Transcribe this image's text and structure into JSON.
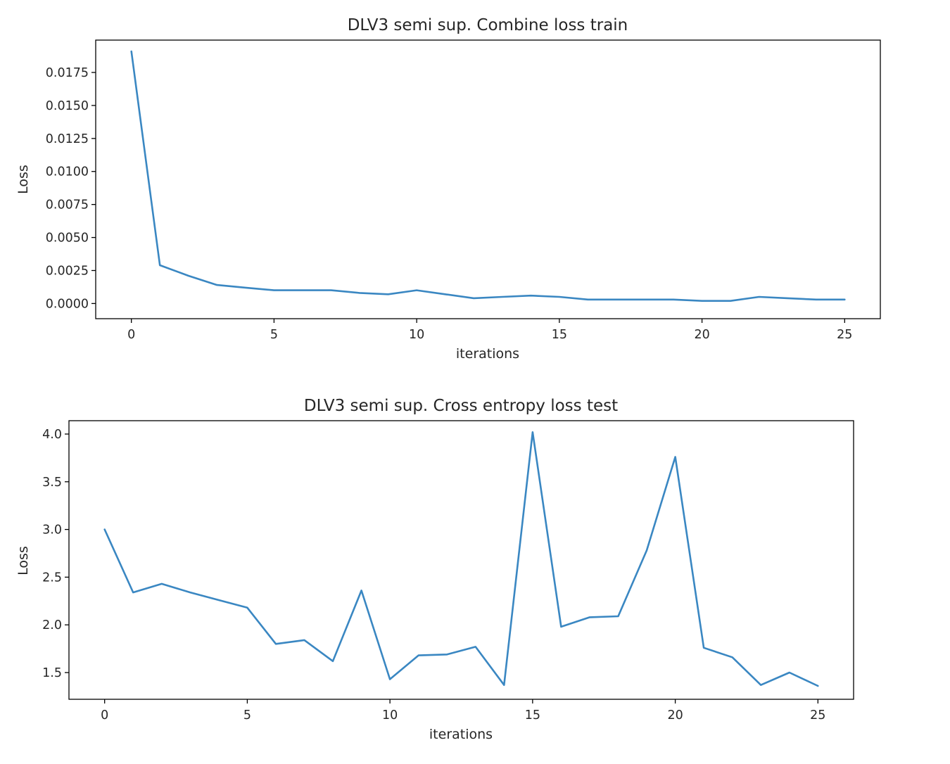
{
  "chart_data": [
    {
      "type": "line",
      "title": "DLV3 semi sup. Combine loss train",
      "xlabel": "iterations",
      "ylabel": "Loss",
      "xlim": [
        -1.25,
        26.25
      ],
      "ylim": [
        -0.00115,
        0.01995
      ],
      "xticks": [
        0,
        5,
        10,
        15,
        20,
        25
      ],
      "xtick_labels": [
        "0",
        "5",
        "10",
        "15",
        "20",
        "25"
      ],
      "yticks": [
        0,
        0.0025,
        0.005,
        0.0075,
        0.01,
        0.0125,
        0.015,
        0.0175
      ],
      "ytick_labels": [
        "0.0000",
        "0.0025",
        "0.0050",
        "0.0075",
        "0.0100",
        "0.0125",
        "0.0150",
        "0.0175"
      ],
      "grid": false,
      "color": "#3a87c2",
      "x": [
        0,
        1,
        2,
        3,
        4,
        5,
        6,
        7,
        8,
        9,
        10,
        11,
        12,
        13,
        14,
        15,
        16,
        17,
        18,
        19,
        20,
        21,
        22,
        23,
        24,
        25
      ],
      "y": [
        0.0191,
        0.0029,
        0.0021,
        0.0014,
        0.0012,
        0.001,
        0.001,
        0.001,
        0.0008,
        0.0007,
        0.001,
        0.0007,
        0.0004,
        0.0005,
        0.0006,
        0.0005,
        0.0003,
        0.0003,
        0.0003,
        0.0003,
        0.0002,
        0.0002,
        0.0005,
        0.0004,
        0.0003,
        0.0003
      ]
    },
    {
      "type": "line",
      "title": "DLV3 semi sup. Cross entropy loss test",
      "xlabel": "iterations",
      "ylabel": "Loss",
      "xlim": [
        -1.25,
        26.25
      ],
      "ylim": [
        1.22,
        4.14
      ],
      "xticks": [
        0,
        5,
        10,
        15,
        20,
        25
      ],
      "xtick_labels": [
        "0",
        "5",
        "10",
        "15",
        "20",
        "25"
      ],
      "yticks": [
        1.5,
        2.0,
        2.5,
        3.0,
        3.5,
        4.0
      ],
      "ytick_labels": [
        "1.5",
        "2.0",
        "2.5",
        "3.0",
        "3.5",
        "4.0"
      ],
      "grid": false,
      "color": "#3a87c2",
      "x": [
        0,
        1,
        2,
        3,
        4,
        5,
        6,
        7,
        8,
        9,
        10,
        11,
        12,
        13,
        14,
        15,
        16,
        17,
        18,
        19,
        20,
        21,
        22,
        23,
        24,
        25
      ],
      "y": [
        3.0,
        2.34,
        2.43,
        2.34,
        2.26,
        2.18,
        1.8,
        1.84,
        1.62,
        2.36,
        1.43,
        1.68,
        1.69,
        1.77,
        1.37,
        4.02,
        1.98,
        2.08,
        2.09,
        2.78,
        3.76,
        1.76,
        1.66,
        1.37,
        1.5,
        1.36
      ]
    }
  ]
}
